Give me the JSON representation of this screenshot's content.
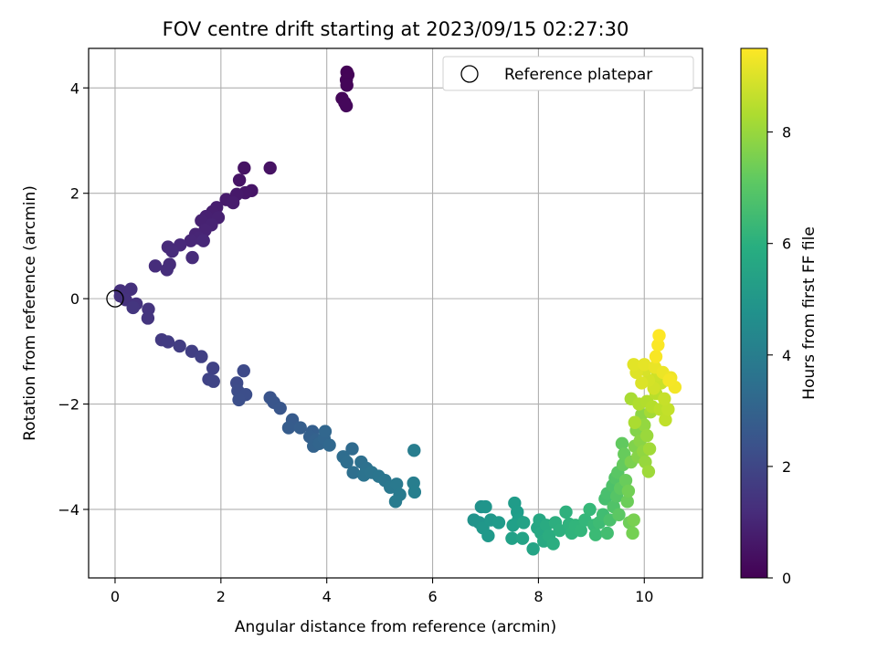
{
  "chart_data": {
    "type": "scatter",
    "title": "FOV centre drift starting at 2023/09/15 02:27:30",
    "xlabel": "Angular distance from reference (arcmin)",
    "ylabel": "Rotation from reference (arcmin)",
    "xlim": [
      -0.5,
      11.1
    ],
    "ylim": [
      -5.3,
      4.75
    ],
    "xticks": [
      0,
      2,
      4,
      6,
      8,
      10
    ],
    "yticks": [
      -4,
      -2,
      0,
      2,
      4
    ],
    "grid": true,
    "colormap": "viridis",
    "colorbar": {
      "label": "Hours from first FF file",
      "range": [
        0,
        9.5
      ],
      "ticks": [
        0,
        2,
        4,
        6,
        8
      ]
    },
    "legend": {
      "position": "top-right",
      "entries": [
        "Reference platepar"
      ]
    },
    "reference_point": {
      "x": 0,
      "y": 0,
      "label": "Reference platepar"
    },
    "series": [
      {
        "points": [
          [
            4.38,
            4.3,
            0.05
          ],
          [
            4.4,
            4.25,
            0.08
          ],
          [
            4.37,
            4.15,
            0.1
          ],
          [
            4.38,
            4.05,
            0.12
          ],
          [
            4.29,
            3.8,
            0.15
          ],
          [
            4.34,
            3.72,
            0.18
          ],
          [
            4.37,
            3.66,
            0.2
          ],
          [
            2.93,
            2.48,
            0.45
          ],
          [
            2.44,
            2.48,
            0.48
          ],
          [
            2.35,
            2.25,
            0.52
          ],
          [
            2.58,
            2.05,
            0.55
          ],
          [
            2.46,
            2.01,
            0.6
          ],
          [
            2.3,
            1.98,
            0.65
          ],
          [
            2.1,
            1.88,
            0.7
          ],
          [
            2.23,
            1.82,
            0.72
          ],
          [
            1.92,
            1.73,
            0.78
          ],
          [
            1.84,
            1.65,
            0.8
          ],
          [
            1.72,
            1.56,
            0.84
          ],
          [
            1.95,
            1.54,
            0.86
          ],
          [
            1.63,
            1.48,
            0.88
          ],
          [
            1.82,
            1.4,
            0.92
          ],
          [
            1.7,
            1.3,
            0.95
          ],
          [
            1.52,
            1.22,
            0.98
          ],
          [
            1.58,
            1.15,
            1.0
          ],
          [
            1.43,
            1.1,
            1.02
          ],
          [
            1.67,
            1.1,
            1.05
          ],
          [
            1.23,
            1.02,
            1.1
          ],
          [
            1.0,
            0.98,
            1.12
          ],
          [
            1.08,
            0.9,
            1.15
          ],
          [
            1.46,
            0.78,
            1.18
          ],
          [
            1.03,
            0.65,
            1.2
          ],
          [
            0.76,
            0.62,
            1.22
          ],
          [
            0.98,
            0.55,
            1.25
          ],
          [
            0.1,
            0.15,
            1.3
          ],
          [
            0.3,
            0.18,
            1.32
          ],
          [
            0.1,
            0.05,
            1.35
          ],
          [
            0.2,
            -0.02,
            1.38
          ],
          [
            0.4,
            -0.1,
            1.4
          ],
          [
            0.63,
            -0.2,
            1.42
          ],
          [
            0.62,
            -0.37,
            1.45
          ],
          [
            0.34,
            -0.17,
            1.48
          ],
          [
            0.88,
            -0.78,
            1.6
          ],
          [
            1.0,
            -0.82,
            1.65
          ],
          [
            1.22,
            -0.9,
            1.7
          ],
          [
            1.45,
            -1.0,
            1.75
          ],
          [
            1.63,
            -1.1,
            1.8
          ],
          [
            1.85,
            -1.32,
            1.85
          ],
          [
            1.77,
            -1.53,
            1.9
          ],
          [
            1.86,
            -1.57,
            1.95
          ],
          [
            2.43,
            -1.37,
            2.1
          ],
          [
            2.3,
            -1.6,
            2.15
          ],
          [
            2.32,
            -1.75,
            2.2
          ],
          [
            2.47,
            -1.82,
            2.25
          ],
          [
            2.34,
            -1.92,
            2.3
          ],
          [
            2.93,
            -1.88,
            2.45
          ],
          [
            3.0,
            -1.97,
            2.5
          ],
          [
            3.12,
            -2.08,
            2.55
          ],
          [
            3.35,
            -2.3,
            2.7
          ],
          [
            3.28,
            -2.45,
            2.75
          ],
          [
            3.5,
            -2.45,
            2.8
          ],
          [
            3.73,
            -2.52,
            2.85
          ],
          [
            3.68,
            -2.62,
            2.9
          ],
          [
            3.8,
            -2.68,
            2.95
          ],
          [
            3.75,
            -2.8,
            3.0
          ],
          [
            3.86,
            -2.75,
            3.05
          ],
          [
            3.95,
            -2.65,
            3.1
          ],
          [
            3.97,
            -2.52,
            3.12
          ],
          [
            4.05,
            -2.78,
            3.15
          ],
          [
            4.48,
            -2.85,
            3.3
          ],
          [
            4.31,
            -3.0,
            3.35
          ],
          [
            4.38,
            -3.1,
            3.4
          ],
          [
            4.5,
            -3.3,
            3.45
          ],
          [
            4.65,
            -3.1,
            3.5
          ],
          [
            4.75,
            -3.22,
            3.55
          ],
          [
            4.7,
            -3.35,
            3.6
          ],
          [
            4.85,
            -3.3,
            3.65
          ],
          [
            4.98,
            -3.37,
            3.7
          ],
          [
            5.1,
            -3.45,
            3.75
          ],
          [
            5.2,
            -3.58,
            3.8
          ],
          [
            5.32,
            -3.52,
            3.85
          ],
          [
            5.38,
            -3.72,
            3.9
          ],
          [
            5.3,
            -3.85,
            3.95
          ],
          [
            5.65,
            -2.88,
            4.0
          ],
          [
            5.64,
            -3.5,
            4.05
          ],
          [
            5.66,
            -3.67,
            4.1
          ],
          [
            6.92,
            -3.95,
            4.8
          ],
          [
            6.78,
            -4.2,
            4.85
          ],
          [
            6.88,
            -4.25,
            4.9
          ],
          [
            7.0,
            -3.95,
            4.95
          ],
          [
            6.95,
            -4.35,
            5.0
          ],
          [
            7.1,
            -4.2,
            5.05
          ],
          [
            7.05,
            -4.5,
            5.1
          ],
          [
            7.25,
            -4.25,
            5.15
          ],
          [
            7.55,
            -3.88,
            5.2
          ],
          [
            7.6,
            -4.05,
            5.25
          ],
          [
            7.62,
            -4.2,
            5.3
          ],
          [
            7.52,
            -4.3,
            5.35
          ],
          [
            7.5,
            -4.55,
            5.4
          ],
          [
            7.72,
            -4.25,
            5.45
          ],
          [
            7.7,
            -4.55,
            5.5
          ],
          [
            7.9,
            -4.75,
            5.55
          ],
          [
            7.98,
            -4.35,
            5.6
          ],
          [
            8.02,
            -4.2,
            5.65
          ],
          [
            8.05,
            -4.45,
            5.7
          ],
          [
            8.1,
            -4.6,
            5.75
          ],
          [
            8.15,
            -4.3,
            5.8
          ],
          [
            8.2,
            -4.5,
            5.85
          ],
          [
            8.28,
            -4.65,
            5.9
          ],
          [
            8.32,
            -4.25,
            5.95
          ],
          [
            8.4,
            -4.4,
            6.0
          ],
          [
            8.52,
            -4.05,
            6.05
          ],
          [
            8.58,
            -4.28,
            6.1
          ],
          [
            8.63,
            -4.45,
            6.15
          ],
          [
            8.7,
            -4.3,
            6.2
          ],
          [
            8.8,
            -4.4,
            6.25
          ],
          [
            8.88,
            -4.2,
            6.3
          ],
          [
            8.97,
            -4.0,
            6.35
          ],
          [
            9.05,
            -4.3,
            6.4
          ],
          [
            9.08,
            -4.48,
            6.45
          ],
          [
            9.15,
            -4.25,
            6.5
          ],
          [
            9.22,
            -4.1,
            6.55
          ],
          [
            9.3,
            -4.45,
            6.6
          ],
          [
            9.26,
            -3.8,
            6.65
          ],
          [
            9.3,
            -3.7,
            6.7
          ],
          [
            9.35,
            -4.2,
            6.75
          ],
          [
            9.4,
            -3.55,
            6.8
          ],
          [
            9.42,
            -3.95,
            6.85
          ],
          [
            9.45,
            -3.4,
            6.9
          ],
          [
            9.48,
            -3.75,
            6.95
          ],
          [
            9.5,
            -3.3,
            7.0
          ],
          [
            9.52,
            -4.1,
            7.05
          ],
          [
            9.55,
            -3.6,
            7.1
          ],
          [
            9.58,
            -2.75,
            7.15
          ],
          [
            9.6,
            -3.15,
            7.2
          ],
          [
            9.62,
            -2.95,
            7.25
          ],
          [
            9.65,
            -3.45,
            7.3
          ],
          [
            9.68,
            -3.85,
            7.35
          ],
          [
            9.72,
            -4.25,
            7.4
          ],
          [
            9.7,
            -3.65,
            7.45
          ],
          [
            9.78,
            -4.45,
            7.5
          ],
          [
            9.8,
            -4.2,
            7.55
          ],
          [
            9.75,
            -3.1,
            7.6
          ],
          [
            9.82,
            -2.8,
            7.65
          ],
          [
            9.85,
            -2.5,
            7.7
          ],
          [
            9.88,
            -3.0,
            7.75
          ],
          [
            9.92,
            -2.7,
            7.8
          ],
          [
            9.95,
            -2.2,
            7.85
          ],
          [
            9.98,
            -2.9,
            7.9
          ],
          [
            10.0,
            -2.4,
            7.95
          ],
          [
            10.02,
            -3.1,
            8.0
          ],
          [
            10.05,
            -2.6,
            8.05
          ],
          [
            10.08,
            -3.28,
            8.1
          ],
          [
            10.1,
            -2.85,
            8.15
          ],
          [
            10.12,
            -2.15,
            8.2
          ],
          [
            9.75,
            -1.9,
            8.25
          ],
          [
            9.82,
            -2.35,
            8.3
          ],
          [
            9.9,
            -2.0,
            8.35
          ],
          [
            10.05,
            -1.95,
            8.4
          ],
          [
            10.15,
            -2.05,
            8.45
          ],
          [
            10.22,
            -1.8,
            8.5
          ],
          [
            10.3,
            -2.1,
            8.55
          ],
          [
            10.4,
            -2.3,
            8.6
          ],
          [
            10.45,
            -2.1,
            8.65
          ],
          [
            10.38,
            -1.9,
            8.7
          ],
          [
            10.32,
            -1.6,
            8.75
          ],
          [
            10.25,
            -1.45,
            8.8
          ],
          [
            10.18,
            -1.7,
            8.85
          ],
          [
            10.08,
            -1.55,
            8.9
          ],
          [
            10.02,
            -1.35,
            8.95
          ],
          [
            9.95,
            -1.6,
            9.0
          ],
          [
            9.85,
            -1.4,
            9.05
          ],
          [
            9.8,
            -1.25,
            9.1
          ],
          [
            10.0,
            -1.25,
            9.15
          ],
          [
            10.2,
            -1.3,
            9.2
          ],
          [
            10.35,
            -1.4,
            9.25
          ],
          [
            10.5,
            -1.5,
            9.3
          ],
          [
            10.58,
            -1.68,
            9.35
          ],
          [
            10.47,
            -1.55,
            9.38
          ],
          [
            10.22,
            -1.1,
            9.42
          ],
          [
            10.26,
            -0.88,
            9.45
          ],
          [
            10.28,
            -0.7,
            9.5
          ]
        ]
      }
    ]
  }
}
